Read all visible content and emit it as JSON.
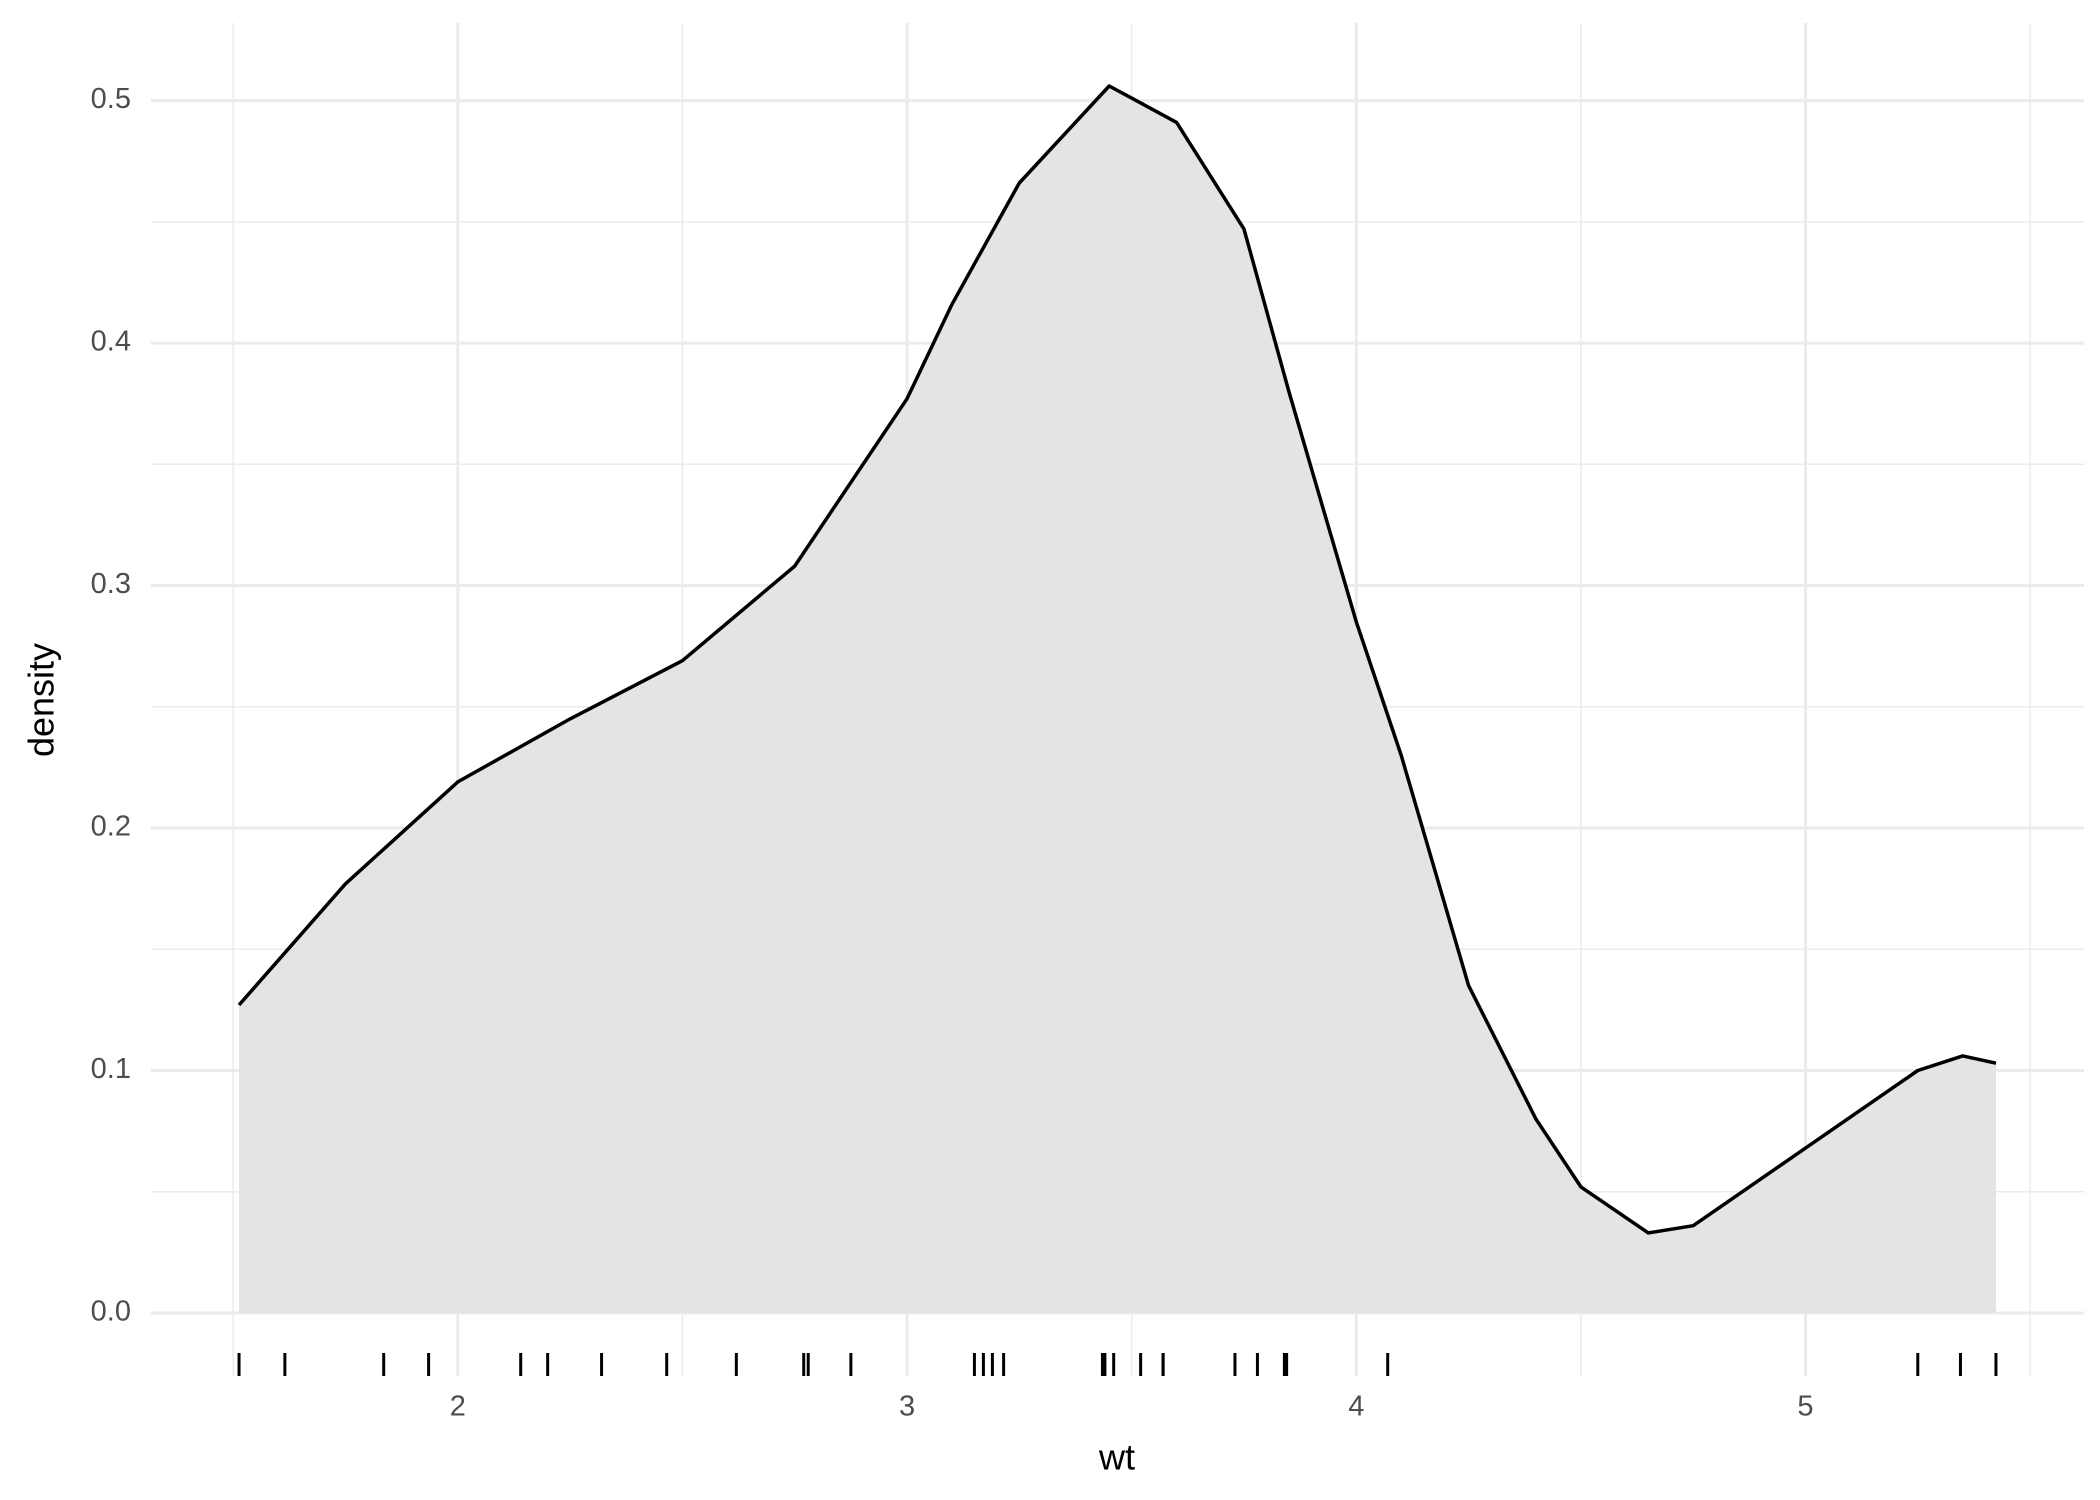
{
  "chart_data": {
    "type": "density",
    "x_label": "wt",
    "y_label": "density",
    "x": [
      1.513,
      1.75,
      2.0,
      2.25,
      2.5,
      2.75,
      3.0,
      3.1,
      3.25,
      3.45,
      3.6,
      3.75,
      3.85,
      4.0,
      4.1,
      4.25,
      4.4,
      4.5,
      4.65,
      4.75,
      5.0,
      5.25,
      5.35,
      5.424
    ],
    "values": [
      0.127,
      0.177,
      0.219,
      0.245,
      0.269,
      0.308,
      0.377,
      0.416,
      0.466,
      0.506,
      0.491,
      0.447,
      0.38,
      0.285,
      0.23,
      0.135,
      0.08,
      0.052,
      0.033,
      0.036,
      0.068,
      0.1,
      0.106,
      0.103
    ],
    "fill": "#e4e4e4",
    "line_color": "#000000",
    "rug": [
      2.62,
      2.875,
      2.32,
      3.215,
      3.44,
      3.46,
      3.57,
      3.19,
      3.15,
      3.44,
      3.44,
      4.07,
      3.73,
      3.78,
      5.25,
      5.424,
      5.345,
      2.2,
      1.615,
      1.835,
      2.465,
      3.52,
      3.435,
      3.84,
      3.845,
      1.935,
      2.14,
      1.513,
      3.17,
      2.77,
      3.57,
      2.78
    ],
    "xlim": [
      1.317,
      5.62
    ],
    "ylim": [
      -0.026,
      0.532
    ],
    "xticks": [
      2,
      3,
      4,
      5
    ],
    "yticks": [
      {
        "value": 0,
        "label": "0.0"
      },
      0.1,
      0.2,
      0.3,
      0.4,
      0.5
    ],
    "x_minor_grid": [
      1.5,
      2.5,
      3.5,
      4.5,
      5.5
    ],
    "y_minor_grid": [
      0.05,
      0.15,
      0.25,
      0.35,
      0.45
    ],
    "grid": true
  }
}
